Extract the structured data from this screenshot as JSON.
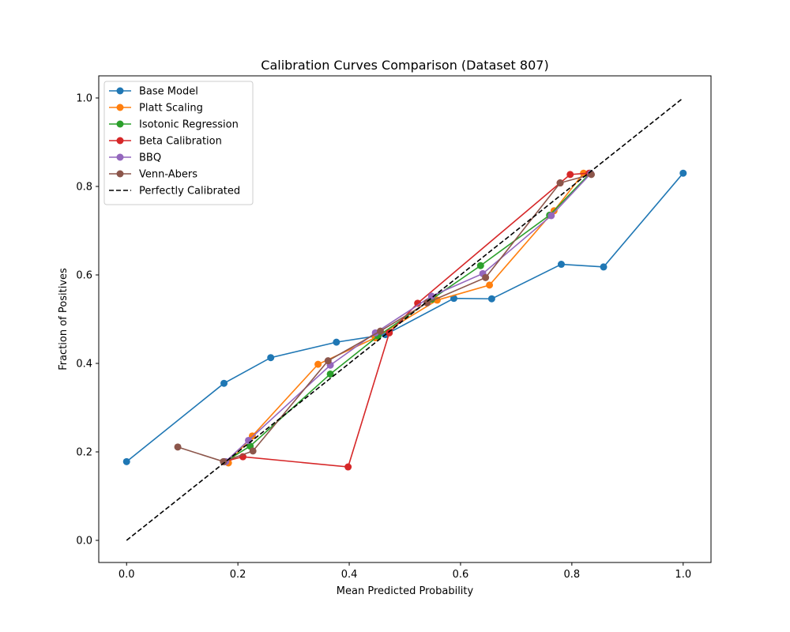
{
  "chart_data": {
    "type": "line",
    "title": "Calibration Curves Comparison (Dataset 807)",
    "xlabel": "Mean Predicted Probability",
    "ylabel": "Fraction of Positives",
    "xlim": [
      -0.05,
      1.05
    ],
    "ylim": [
      -0.05,
      1.05
    ],
    "xticks": [
      0.0,
      0.2,
      0.4,
      0.6,
      0.8,
      1.0
    ],
    "yticks": [
      0.0,
      0.2,
      0.4,
      0.6,
      0.8,
      1.0
    ],
    "xtick_labels": [
      "0.0",
      "0.2",
      "0.4",
      "0.6",
      "0.8",
      "1.0"
    ],
    "ytick_labels": [
      "0.0",
      "0.2",
      "0.4",
      "0.6",
      "0.8",
      "1.0"
    ],
    "grid": false,
    "legend_position": "top-left",
    "series": [
      {
        "name": "Base Model",
        "color": "#1f77b4",
        "style": "solid-markers",
        "points": [
          [
            0.0,
            0.178
          ],
          [
            0.175,
            0.355
          ],
          [
            0.259,
            0.413
          ],
          [
            0.377,
            0.448
          ],
          [
            0.465,
            0.465
          ],
          [
            0.588,
            0.547
          ],
          [
            0.656,
            0.546
          ],
          [
            0.781,
            0.624
          ],
          [
            0.857,
            0.618
          ],
          [
            1.0,
            0.83
          ]
        ]
      },
      {
        "name": "Platt Scaling",
        "color": "#ff7f0e",
        "style": "solid-markers",
        "points": [
          [
            0.183,
            0.175
          ],
          [
            0.226,
            0.236
          ],
          [
            0.344,
            0.398
          ],
          [
            0.447,
            0.458
          ],
          [
            0.558,
            0.543
          ],
          [
            0.652,
            0.577
          ],
          [
            0.768,
            0.745
          ],
          [
            0.821,
            0.83
          ]
        ]
      },
      {
        "name": "Isotonic Regression",
        "color": "#2ca02c",
        "style": "solid-markers",
        "points": [
          [
            0.177,
            0.178
          ],
          [
            0.222,
            0.213
          ],
          [
            0.366,
            0.376
          ],
          [
            0.452,
            0.462
          ],
          [
            0.548,
            0.545
          ],
          [
            0.636,
            0.621
          ],
          [
            0.76,
            0.735
          ],
          [
            0.833,
            0.83
          ]
        ]
      },
      {
        "name": "Beta Calibration",
        "color": "#d62728",
        "style": "solid-markers",
        "points": [
          [
            0.175,
            0.178
          ],
          [
            0.209,
            0.189
          ],
          [
            0.398,
            0.166
          ],
          [
            0.472,
            0.469
          ],
          [
            0.523,
            0.536
          ],
          [
            0.779,
            0.808
          ],
          [
            0.797,
            0.827
          ],
          [
            0.831,
            0.83
          ]
        ]
      },
      {
        "name": "BBQ",
        "color": "#9467bd",
        "style": "solid-markers",
        "points": [
          [
            0.178,
            0.178
          ],
          [
            0.219,
            0.226
          ],
          [
            0.366,
            0.396
          ],
          [
            0.447,
            0.469
          ],
          [
            0.548,
            0.552
          ],
          [
            0.64,
            0.603
          ],
          [
            0.763,
            0.734
          ],
          [
            0.834,
            0.829
          ]
        ]
      },
      {
        "name": "Venn-Abers",
        "color": "#8c564b",
        "style": "solid-markers",
        "points": [
          [
            0.092,
            0.211
          ],
          [
            0.174,
            0.178
          ],
          [
            0.227,
            0.202
          ],
          [
            0.362,
            0.406
          ],
          [
            0.456,
            0.473
          ],
          [
            0.54,
            0.537
          ],
          [
            0.645,
            0.594
          ],
          [
            0.779,
            0.808
          ],
          [
            0.835,
            0.827
          ]
        ]
      },
      {
        "name": "Perfectly Calibrated",
        "color": "#000000",
        "style": "dashed",
        "points": [
          [
            0.0,
            0.0
          ],
          [
            1.0,
            1.0
          ]
        ]
      }
    ]
  }
}
